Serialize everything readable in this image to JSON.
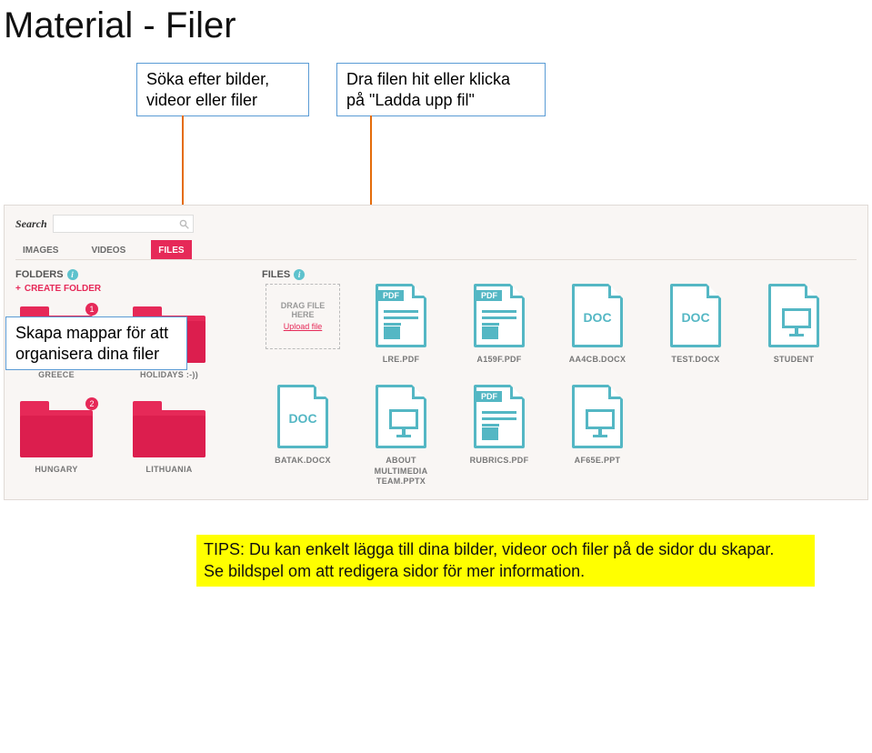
{
  "page_title": "Material - Filer",
  "callouts": {
    "search": "Söka efter bilder,\nvideor eller filer",
    "upload": "Dra filen hit eller klicka\npå \"Ladda upp fil\"",
    "organize": "Skapa mappar för att\norganisera dina filer"
  },
  "search": {
    "label": "Search"
  },
  "tabs": {
    "images": "IMAGES",
    "videos": "VIDEOS",
    "files": "FILES"
  },
  "sections": {
    "folders_title": "FOLDERS",
    "create_folder": "CREATE FOLDER",
    "files_title": "FILES"
  },
  "folders": [
    {
      "name": "GREECE",
      "badge": "1"
    },
    {
      "name": "HOLIDAYS :-))",
      "badge": ""
    },
    {
      "name": "HUNGARY",
      "badge": "2"
    },
    {
      "name": "LITHUANIA",
      "badge": ""
    }
  ],
  "dropzone": {
    "line1": "DRAG FILE",
    "line2": "HERE",
    "link": "Upload file"
  },
  "files": [
    {
      "name": "LRE.PDF",
      "type": "pdf"
    },
    {
      "name": "A159F.PDF",
      "type": "pdf"
    },
    {
      "name": "AA4CB.DOCX",
      "type": "doc"
    },
    {
      "name": "TEST.DOCX",
      "type": "doc"
    },
    {
      "name": "STUDENT",
      "type": "ppt"
    },
    {
      "name": "BATAK.DOCX",
      "type": "doc"
    },
    {
      "name": "ABOUT MULTIMEDIA TEAM.PPTX",
      "type": "ppt"
    },
    {
      "name": "RUBRICS.PDF",
      "type": "pdf"
    },
    {
      "name": "AF65E.PPT",
      "type": "ppt"
    }
  ],
  "tips": {
    "line1": "TIPS: Du kan enkelt lägga till dina bilder, videor och filer på de sidor du skapar.",
    "line2": "Se bildspel om att redigera sidor för mer information."
  },
  "colors": {
    "accent_pink": "#e62958",
    "accent_teal": "#54b7c4",
    "callout_border": "#5a9bd5",
    "arrow": "#e46c0a",
    "tips_bg": "#ffff00",
    "panel_bg": "#f9f6f4"
  }
}
